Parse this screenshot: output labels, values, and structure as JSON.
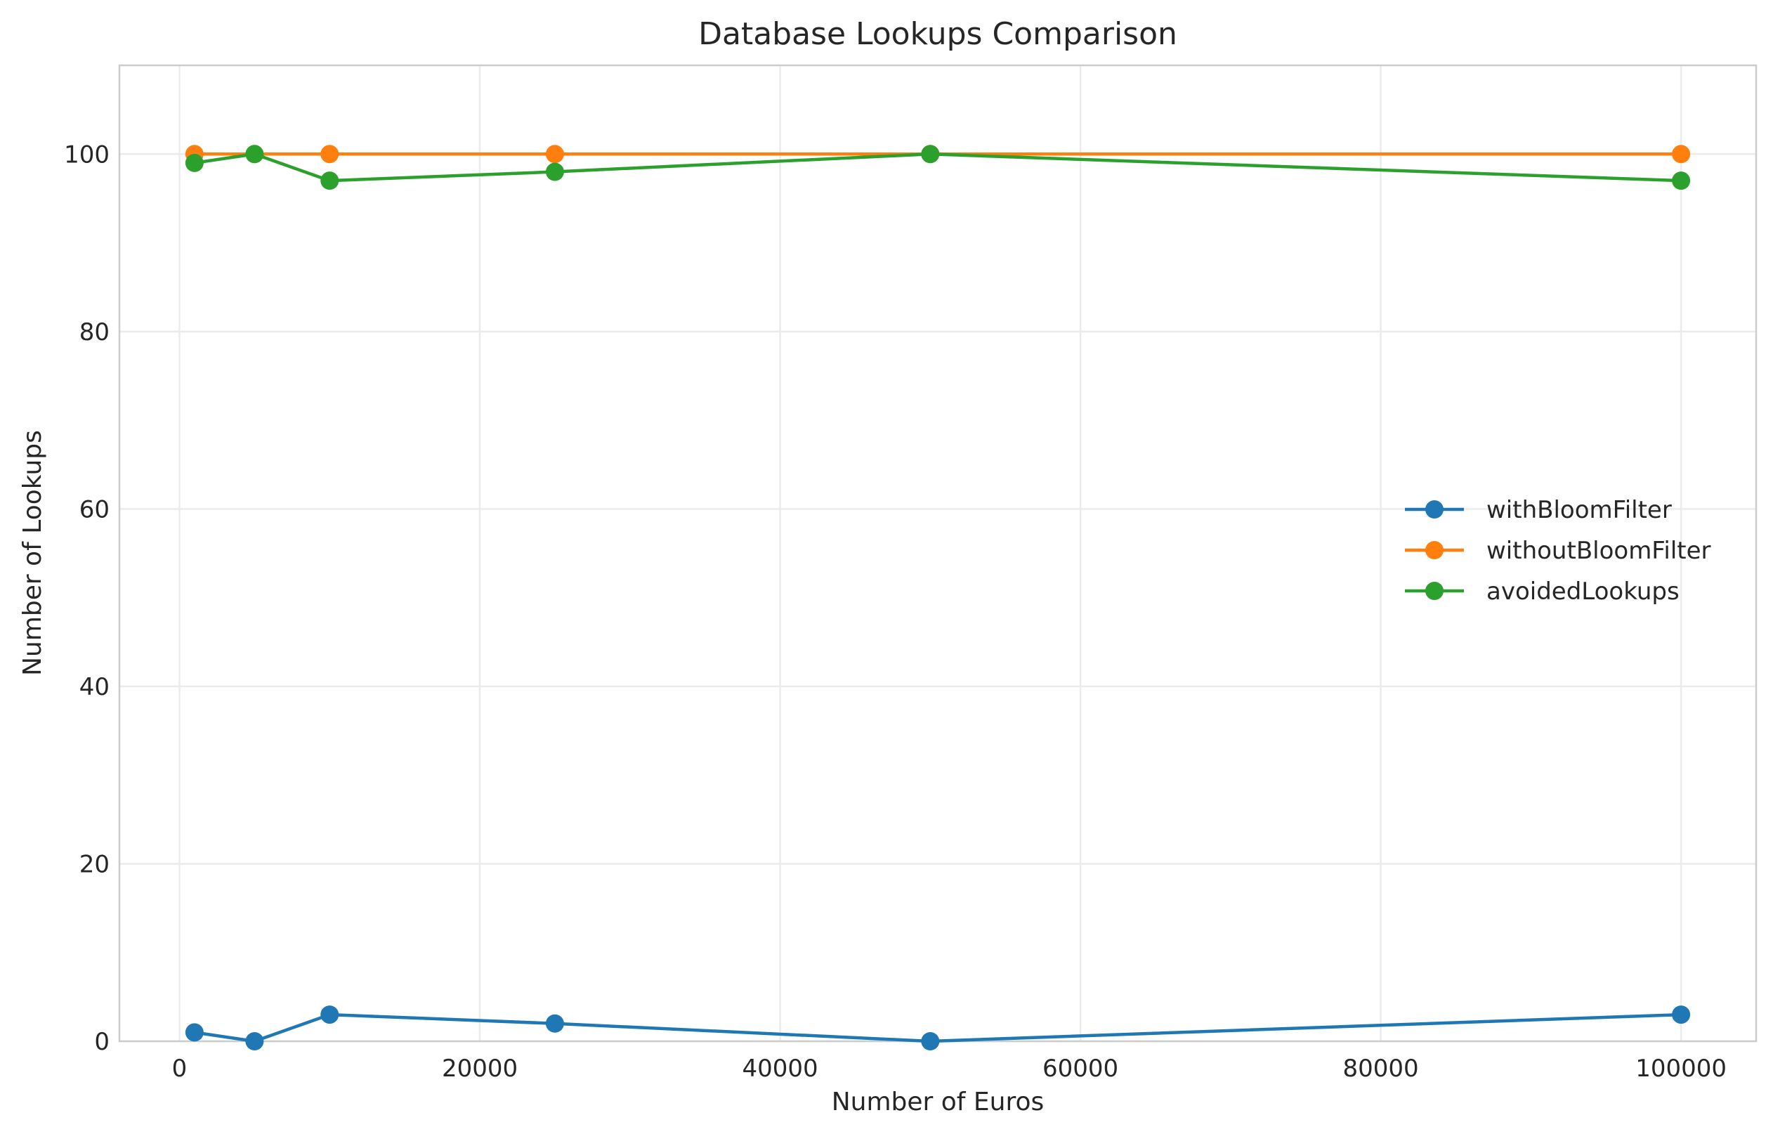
{
  "chart_data": {
    "type": "line",
    "title": "Database Lookups Comparison",
    "xlabel": "Number of Euros",
    "ylabel": "Number of Lookups",
    "x": [
      1000,
      5000,
      10000,
      25000,
      50000,
      100000
    ],
    "series": [
      {
        "name": "withBloomFilter",
        "color": "#1f77b4",
        "values": [
          1,
          0,
          3,
          2,
          0,
          3
        ]
      },
      {
        "name": "withoutBloomFilter",
        "color": "#ff7f0e",
        "values": [
          100,
          100,
          100,
          100,
          100,
          100
        ]
      },
      {
        "name": "avoidedLookups",
        "color": "#2ca02c",
        "values": [
          99,
          100,
          97,
          98,
          100,
          97
        ]
      }
    ],
    "xlim": [
      -4000,
      105000
    ],
    "ylim": [
      0,
      110
    ],
    "xticks": [
      "0",
      "20000",
      "40000",
      "60000",
      "80000",
      "100000"
    ],
    "yticks": [
      "0",
      "20",
      "40",
      "60",
      "80",
      "100"
    ],
    "xtick_values": [
      0,
      20000,
      40000,
      60000,
      80000,
      100000
    ],
    "ytick_values": [
      0,
      20,
      40,
      60,
      80,
      100
    ],
    "grid": true,
    "legend_position": "center-right",
    "marker": "circle"
  }
}
